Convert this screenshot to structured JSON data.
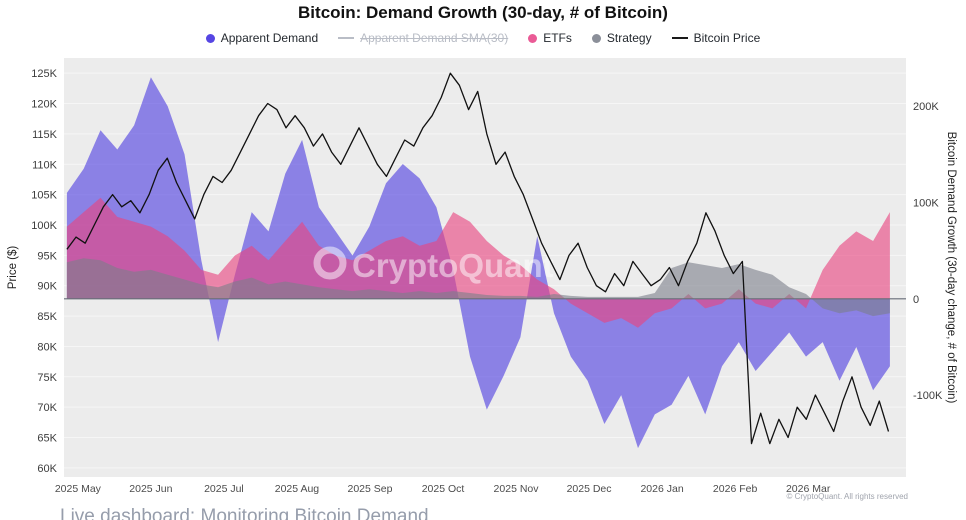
{
  "title": "Bitcoin: Demand Growth (30-day, # of Bitcoin)",
  "watermark": "CryptoQuant",
  "legend": {
    "items": [
      {
        "label": "Apparent Demand",
        "color": "#5646e3",
        "marker": "circle",
        "disabled": false
      },
      {
        "label": "Apparent Demand SMA(30)",
        "color": "#b9bdc6",
        "marker": "line",
        "disabled": true
      },
      {
        "label": "ETFs",
        "color": "#ea5b96",
        "marker": "circle",
        "disabled": false
      },
      {
        "label": "Strategy",
        "color": "#8b8f99",
        "marker": "circle",
        "disabled": false
      },
      {
        "label": "Bitcoin Price",
        "color": "#1a1a1a",
        "marker": "line",
        "disabled": false
      }
    ]
  },
  "footer": {
    "copyright": "© CryptoQuant. All rights reserved",
    "caption": "Live dashboard: Monitoring Bitcoin Demand"
  },
  "chart_data": {
    "type": "area+line",
    "title": "Bitcoin: Demand Growth (30-day, # of Bitcoin)",
    "plot_bg": "#ececec",
    "grid_color": "#ffffff",
    "zero_line_color": "#676d78",
    "x_domain": [
      -0.19,
      11.34
    ],
    "x_unit": "months since 2025-05-01",
    "x_categories": [
      "2025 May",
      "2025 Jun",
      "2025 Jul",
      "2025 Aug",
      "2025 Sep",
      "2025 Oct",
      "2025 Nov",
      "2025 Dec",
      "2026 Jan",
      "2026 Feb",
      "2026 Mar"
    ],
    "left_axis": {
      "label": "Price ($)",
      "unit": "K USD",
      "ticks": [
        60,
        65,
        70,
        75,
        80,
        85,
        90,
        95,
        100,
        105,
        110,
        115,
        120,
        125
      ],
      "ylim": [
        58.5,
        127.5
      ]
    },
    "right_axis": {
      "label": "Bitcoin Demand Growth (30-day change, # of Bitcoin)",
      "unit": "K BTC",
      "ticks": [
        200,
        100,
        0,
        -100
      ],
      "tick_labels": [
        "200K",
        "100K",
        "0",
        "-100K"
      ],
      "ylim": [
        -185,
        250
      ]
    },
    "series": [
      {
        "name": "Apparent Demand",
        "type": "area",
        "axis": "right",
        "color": "#4f3fe0",
        "opacity": 0.62,
        "x_start": -0.15,
        "x_step": 0.23,
        "values": [
          110,
          135,
          175,
          155,
          180,
          230,
          200,
          150,
          40,
          -45,
          25,
          90,
          70,
          130,
          165,
          95,
          70,
          45,
          75,
          120,
          140,
          125,
          95,
          30,
          -60,
          -115,
          -80,
          -40,
          65,
          -15,
          -60,
          -85,
          -130,
          -100,
          -155,
          -120,
          -110,
          -80,
          -120,
          -70,
          -45,
          -75,
          -55,
          -35,
          -60,
          -45,
          -85,
          -50,
          -95,
          -70
        ]
      },
      {
        "name": "ETFs",
        "type": "area",
        "axis": "right",
        "color": "#e8437f",
        "opacity": 0.62,
        "x_start": -0.15,
        "x_step": 0.23,
        "values": [
          75,
          90,
          105,
          85,
          80,
          75,
          65,
          50,
          30,
          25,
          45,
          55,
          40,
          60,
          80,
          55,
          45,
          40,
          50,
          60,
          65,
          55,
          60,
          90,
          80,
          60,
          45,
          35,
          20,
          10,
          -5,
          -15,
          -25,
          -20,
          -30,
          -15,
          -10,
          5,
          -10,
          -5,
          10,
          -5,
          -10,
          5,
          -10,
          30,
          55,
          70,
          60,
          90
        ]
      },
      {
        "name": "Strategy",
        "type": "area",
        "axis": "right",
        "color": "#7b7f8a",
        "opacity": 0.6,
        "x_start": -0.15,
        "x_step": 0.23,
        "values": [
          38,
          42,
          40,
          32,
          28,
          30,
          25,
          20,
          15,
          12,
          18,
          22,
          15,
          18,
          15,
          12,
          10,
          8,
          10,
          8,
          6,
          8,
          6,
          8,
          6,
          4,
          3,
          3,
          2,
          5,
          3,
          2,
          2,
          2,
          2,
          6,
          32,
          38,
          35,
          32,
          36,
          30,
          25,
          12,
          5,
          -10,
          -15,
          -12,
          -18,
          -15
        ]
      },
      {
        "name": "Bitcoin Price",
        "type": "line",
        "axis": "left",
        "color": "#111111",
        "opacity": 1,
        "x_start": -0.15,
        "x_step": 0.125,
        "values": [
          96,
          98,
          97,
          100,
          103,
          105,
          103,
          104,
          102,
          105,
          109,
          111,
          107,
          104,
          101,
          105,
          108,
          107,
          109,
          112,
          115,
          118,
          120,
          119,
          116,
          118,
          116,
          113,
          115,
          112,
          110,
          113,
          116,
          113,
          110,
          108,
          111,
          114,
          113,
          116,
          118,
          121,
          125,
          123,
          119,
          122,
          115,
          110,
          112,
          108,
          105,
          101,
          97,
          94,
          91,
          95,
          97,
          93,
          90,
          89,
          92,
          90,
          94,
          92,
          90,
          91,
          93,
          90,
          94,
          97,
          102,
          99,
          95,
          92,
          94,
          64,
          69,
          64,
          68,
          65,
          70,
          68,
          72,
          69,
          66,
          71,
          75,
          70,
          67,
          71,
          66
        ]
      }
    ]
  }
}
